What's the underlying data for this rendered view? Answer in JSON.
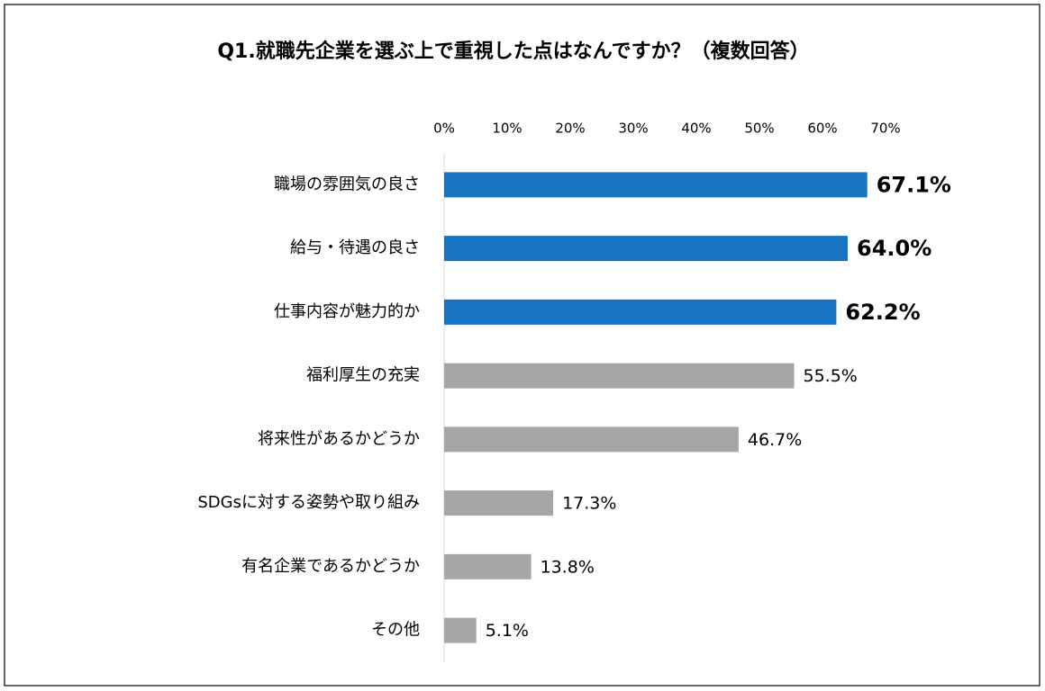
{
  "chart_data": {
    "type": "bar",
    "orientation": "horizontal",
    "title": "Q1.就職先企業を選ぶ上で重視した点はなんですか？（複数回答）",
    "categories": [
      "職場の雰囲気の良さ",
      "給与・待遇の良さ",
      "仕事内容が魅力的か",
      "福利厚生の充実",
      "将来性があるかどうか",
      "SDGsに対する姿勢や取り組み",
      "有名企業であるかどうか",
      "その他"
    ],
    "values": [
      67.1,
      64.0,
      62.2,
      55.5,
      46.7,
      17.3,
      13.8,
      5.1
    ],
    "value_labels": [
      "67.1%",
      "64.0%",
      "62.2%",
      "55.5%",
      "46.7%",
      "17.3%",
      "13.8%",
      "5.1%"
    ],
    "colors": [
      "#1874c1",
      "#1874c1",
      "#1874c1",
      "#a6a6a6",
      "#a6a6a6",
      "#a6a6a6",
      "#a6a6a6",
      "#a6a6a6"
    ],
    "xlim": [
      0,
      70
    ],
    "xticks": [
      {
        "value": 0,
        "label": "0%"
      },
      {
        "value": 10,
        "label": "10%"
      },
      {
        "value": 20,
        "label": "20%"
      },
      {
        "value": 30,
        "label": "30%"
      },
      {
        "value": 40,
        "label": "40%"
      },
      {
        "value": 50,
        "label": "50%"
      },
      {
        "value": 60,
        "label": "60%"
      },
      {
        "value": 70,
        "label": "70%"
      }
    ]
  }
}
